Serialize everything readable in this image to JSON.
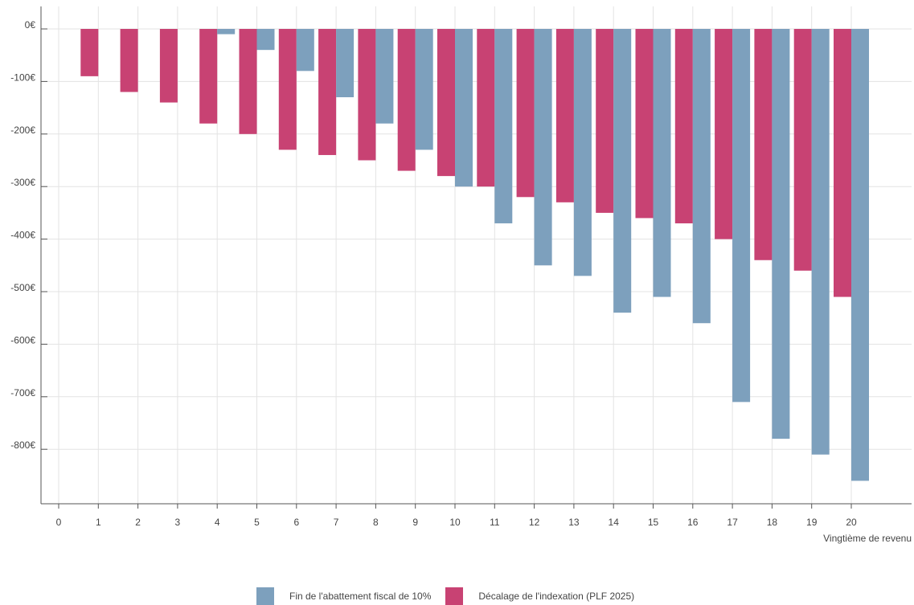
{
  "chart_data": {
    "type": "bar",
    "xlabel": "Vingtième de revenu",
    "ylabel": "",
    "title": "",
    "ylim": [
      -950,
      0
    ],
    "yticks": [
      0,
      -100,
      -200,
      -300,
      -400,
      -500,
      -600,
      -700,
      -800
    ],
    "ytick_labels": [
      "0€",
      "-100€",
      "-200€",
      "-300€",
      "-400€",
      "-500€",
      "-600€",
      "-700€",
      "-800€"
    ],
    "categories": [
      "0",
      "1",
      "2",
      "3",
      "4",
      "5",
      "6",
      "7",
      "8",
      "9",
      "10",
      "11",
      "12",
      "13",
      "14",
      "15",
      "16",
      "17",
      "18",
      "19",
      "20"
    ],
    "grid": true,
    "legend_position": "bottom",
    "series": [
      {
        "name": "Fin de l'abattement fiscal de 10%",
        "color": "#7da0bd",
        "values": [
          null,
          null,
          null,
          null,
          -10,
          -40,
          -80,
          -130,
          -180,
          -230,
          -300,
          -370,
          -450,
          -470,
          -540,
          -510,
          -560,
          -710,
          -780,
          -810,
          -860
        ]
      },
      {
        "name": "Décalage de l'indexation (PLF 2025)",
        "color": "#c84273",
        "values": [
          null,
          -90,
          -120,
          -140,
          -180,
          -200,
          -230,
          -240,
          -250,
          -270,
          -280,
          -300,
          -320,
          -330,
          -350,
          -360,
          -370,
          -400,
          -440,
          -460,
          -510
        ]
      }
    ]
  }
}
